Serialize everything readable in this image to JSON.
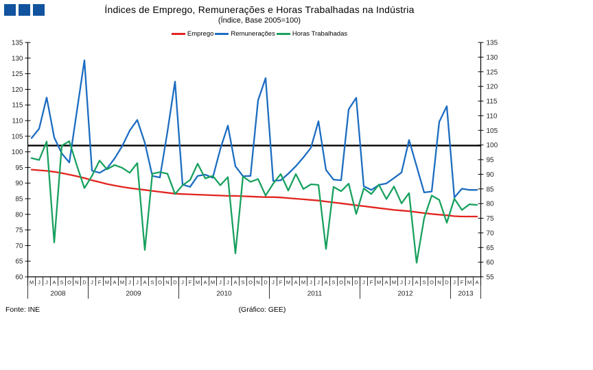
{
  "logo": {
    "color": "#11539E"
  },
  "header": {
    "title": "Índices de Emprego, Remunerações e Horas Trabalhadas na Indústria",
    "subtitle": "(Índice, Base 2005=100)"
  },
  "legend": [
    {
      "label": "Emprego",
      "color": "#E2231E"
    },
    {
      "label": "Remunerações",
      "color": "#1B6CC1"
    },
    {
      "label": "Horas Trabalhadas",
      "color": "#18A05E"
    }
  ],
  "footer": {
    "source": "Fonte: INE",
    "credit": "(Gráfico: GEE)"
  },
  "chart_data": {
    "type": "line",
    "title": "Índices de Emprego, Remunerações e Horas Trabalhadas na Indústria",
    "subtitle": "(Índice, Base 2005=100)",
    "grid": false,
    "legend_position": "top-center",
    "left_axis": {
      "ticks": [
        135,
        130,
        125,
        120,
        115,
        110,
        105,
        100,
        95,
        90,
        85,
        80,
        75,
        70,
        65,
        60
      ]
    },
    "right_axis": {
      "ticks": [
        135,
        130,
        125,
        120,
        115,
        110,
        105,
        100,
        95,
        90,
        85,
        80,
        75,
        70,
        65,
        60,
        55
      ]
    },
    "reference_line": {
      "value_left_axis": 102,
      "value_right_axis": 100,
      "color": "#000000"
    },
    "x_months": [
      "M",
      "J",
      "J",
      "A",
      "S",
      "O",
      "N",
      "D",
      "J",
      "F",
      "M",
      "A",
      "M",
      "J",
      "J",
      "A",
      "S",
      "O",
      "N",
      "D",
      "J",
      "F",
      "M",
      "A",
      "M",
      "J",
      "J",
      "A",
      "S",
      "O",
      "N",
      "D",
      "J",
      "F",
      "M",
      "A",
      "M",
      "J",
      "J",
      "A",
      "S",
      "O",
      "N",
      "D",
      "J",
      "F",
      "M",
      "A",
      "M",
      "J",
      "J",
      "A",
      "S",
      "O",
      "N",
      "D",
      "J",
      "F",
      "M",
      "A"
    ],
    "year_groups": [
      {
        "label": "2008",
        "months": 8
      },
      {
        "label": "2009",
        "months": 12
      },
      {
        "label": "2010",
        "months": 12
      },
      {
        "label": "2011",
        "months": 12
      },
      {
        "label": "2012",
        "months": 12
      },
      {
        "label": "2013",
        "months": 4
      }
    ],
    "series": [
      {
        "name": "Emprego",
        "color": "#E2231E",
        "values": [
          94.3,
          94.1,
          93.9,
          93.6,
          93.2,
          92.7,
          92.2,
          91.6,
          90.9,
          90.3,
          89.7,
          89.2,
          88.8,
          88.4,
          88.1,
          87.8,
          87.5,
          87.2,
          86.9,
          86.6,
          86.5,
          86.4,
          86.3,
          86.2,
          86.1,
          86.0,
          85.9,
          85.9,
          85.8,
          85.7,
          85.6,
          85.5,
          85.5,
          85.4,
          85.2,
          85.0,
          84.8,
          84.6,
          84.4,
          84.1,
          83.8,
          83.5,
          83.2,
          82.9,
          82.6,
          82.3,
          82.0,
          81.7,
          81.4,
          81.2,
          81.0,
          80.7,
          80.4,
          80.1,
          79.9,
          79.7,
          79.4,
          79.3,
          79.3,
          79.3
        ]
      },
      {
        "name": "Remunerações",
        "color": "#1B6CC1",
        "values": [
          104.4,
          107.4,
          117.4,
          104.6,
          99.5,
          96.6,
          113.0,
          129.3,
          94.0,
          93.3,
          94.7,
          97.9,
          101.8,
          106.8,
          110.2,
          102.9,
          92.3,
          91.8,
          106.5,
          122.5,
          89.5,
          88.8,
          92.3,
          92.7,
          91.7,
          100.9,
          108.4,
          95.4,
          92.2,
          92.3,
          116.5,
          123.6,
          90.7,
          90.9,
          93.0,
          95.4,
          98.2,
          101.3,
          109.8,
          94.2,
          91.1,
          90.9,
          113.6,
          117.3,
          89.0,
          87.8,
          89.4,
          89.9,
          91.6,
          93.4,
          103.8,
          95.4,
          87.0,
          87.3,
          109.6,
          114.6,
          85.4,
          88.2,
          87.8,
          87.8
        ]
      },
      {
        "name": "Horas Trabalhadas",
        "color": "#18A05E",
        "values": [
          98.0,
          97.4,
          103.3,
          71.0,
          102.0,
          103.4,
          95.6,
          88.4,
          92.3,
          97.2,
          94.4,
          95.8,
          94.9,
          93.3,
          96.4,
          68.6,
          93.0,
          93.5,
          93.0,
          86.5,
          89.3,
          91.0,
          96.2,
          91.5,
          92.3,
          89.3,
          91.9,
          67.5,
          92.1,
          90.4,
          91.3,
          86.0,
          89.8,
          92.9,
          87.6,
          92.9,
          88.1,
          89.6,
          89.4,
          68.9,
          88.8,
          87.4,
          89.8,
          80.1,
          88.3,
          86.5,
          89.5,
          84.9,
          88.9,
          83.5,
          86.8,
          64.5,
          78.8,
          86.0,
          84.6,
          77.3,
          85.0,
          81.4,
          83.2,
          83.0
        ]
      }
    ]
  }
}
